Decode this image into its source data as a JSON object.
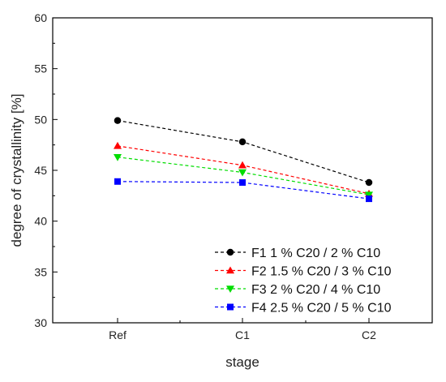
{
  "chart_data": {
    "type": "line",
    "title": "",
    "xlabel": "stage",
    "ylabel": "degree of crystallinity [%]",
    "categories": [
      "Ref",
      "C1",
      "C2"
    ],
    "ylim": [
      30,
      60
    ],
    "yticks": [
      "30",
      "35",
      "40",
      "45",
      "50",
      "55",
      "60"
    ],
    "grid": false,
    "legend_position": "bottom-right",
    "series": [
      {
        "name": "F1 1 % C20 / 2 % C10",
        "values": [
          49.9,
          47.8,
          43.8
        ],
        "color": "#000000",
        "marker": "circle"
      },
      {
        "name": "F2 1.5 % C20 / 3 % C10",
        "values": [
          47.4,
          45.5,
          42.7
        ],
        "color": "#ff0000",
        "marker": "triangle-up"
      },
      {
        "name": "F3 2 % C20 / 4 % C10",
        "values": [
          46.3,
          44.8,
          42.6
        ],
        "color": "#00dd00",
        "marker": "triangle-down"
      },
      {
        "name": "F4 2.5 % C20 / 5 % C10",
        "values": [
          43.9,
          43.8,
          42.2
        ],
        "color": "#0000ff",
        "marker": "square"
      }
    ]
  }
}
